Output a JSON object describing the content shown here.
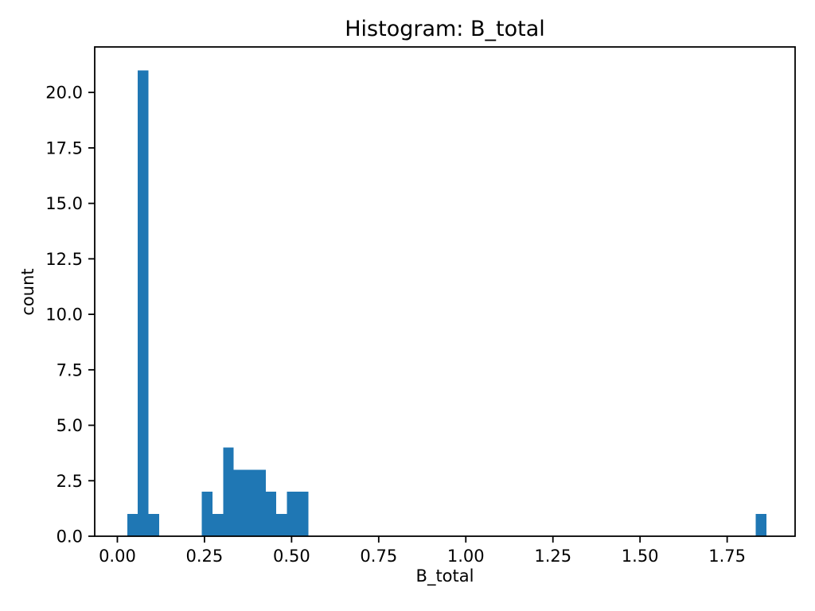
{
  "chart_data": {
    "type": "histogram",
    "title": "Histogram: B_total",
    "xlabel": "B_total",
    "ylabel": "count",
    "bar_color": "#1f77b4",
    "axis_color": "#000000",
    "background_color": "#ffffff",
    "grid": false,
    "xlim": [
      -0.065,
      1.945
    ],
    "ylim": [
      0,
      22.05
    ],
    "x_ticks": [
      {
        "value": 0.0,
        "label": "0.00"
      },
      {
        "value": 0.25,
        "label": "0.25"
      },
      {
        "value": 0.5,
        "label": "0.50"
      },
      {
        "value": 0.75,
        "label": "0.75"
      },
      {
        "value": 1.0,
        "label": "1.00"
      },
      {
        "value": 1.25,
        "label": "1.25"
      },
      {
        "value": 1.5,
        "label": "1.50"
      },
      {
        "value": 1.75,
        "label": "1.75"
      }
    ],
    "y_ticks": [
      {
        "value": 0.0,
        "label": "0.0"
      },
      {
        "value": 2.5,
        "label": "2.5"
      },
      {
        "value": 5.0,
        "label": "5.0"
      },
      {
        "value": 7.5,
        "label": "7.5"
      },
      {
        "value": 10.0,
        "label": "10.0"
      },
      {
        "value": 12.5,
        "label": "12.5"
      },
      {
        "value": 15.0,
        "label": "15.0"
      },
      {
        "value": 17.5,
        "label": "17.5"
      },
      {
        "value": 20.0,
        "label": "20.0"
      }
    ],
    "bin_width": 0.0306,
    "bins": [
      {
        "x0": 0.0283,
        "x1": 0.0589,
        "count": 1
      },
      {
        "x0": 0.0589,
        "x1": 0.0894,
        "count": 21
      },
      {
        "x0": 0.0894,
        "x1": 0.12,
        "count": 1
      },
      {
        "x0": 0.2423,
        "x1": 0.2728,
        "count": 2
      },
      {
        "x0": 0.2728,
        "x1": 0.3034,
        "count": 1
      },
      {
        "x0": 0.3034,
        "x1": 0.334,
        "count": 4
      },
      {
        "x0": 0.334,
        "x1": 0.3645,
        "count": 3
      },
      {
        "x0": 0.3645,
        "x1": 0.3951,
        "count": 3
      },
      {
        "x0": 0.3951,
        "x1": 0.4257,
        "count": 3
      },
      {
        "x0": 0.4257,
        "x1": 0.4562,
        "count": 2
      },
      {
        "x0": 0.4562,
        "x1": 0.4868,
        "count": 1
      },
      {
        "x0": 0.4868,
        "x1": 0.5174,
        "count": 2
      },
      {
        "x0": 0.5174,
        "x1": 0.548,
        "count": 2
      },
      {
        "x0": 1.8318,
        "x1": 1.8623,
        "count": 1
      }
    ],
    "total_count": 47
  }
}
